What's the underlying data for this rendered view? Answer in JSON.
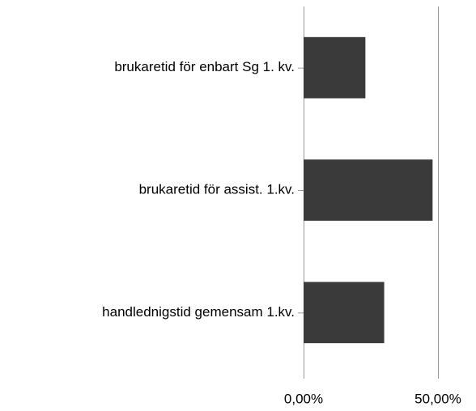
{
  "chart_data": {
    "type": "barh",
    "categories": [
      "brukaretid för enbart Sg 1. kv.",
      "brukaretid för assist. 1.kv.",
      "handlednigstid gemensam 1.kv."
    ],
    "values": [
      23,
      48,
      30
    ],
    "color": "#3a3a3a",
    "xlim": [
      0,
      50
    ],
    "xticks": [
      {
        "value": 0,
        "label": "0,00%"
      },
      {
        "value": 50,
        "label": "50,00%"
      }
    ]
  }
}
